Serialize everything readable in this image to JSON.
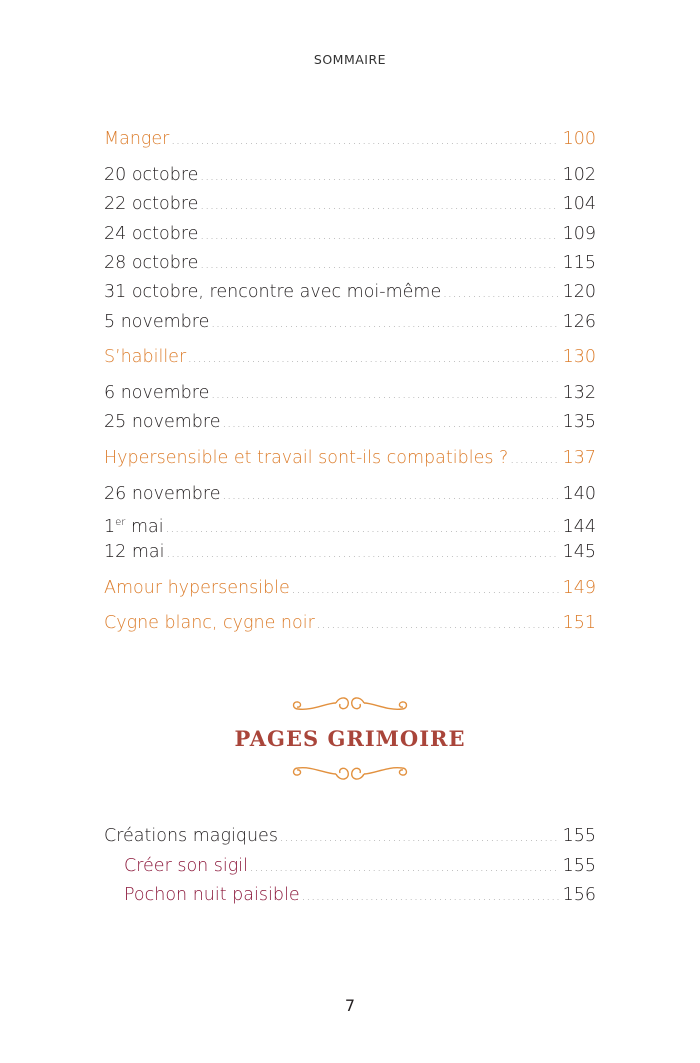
{
  "header": "SOMMAIRE",
  "entries": [
    {
      "label": "Manger",
      "page": "100"
    },
    {
      "label": "20 octobre",
      "page": "102"
    },
    {
      "label": "22 octobre",
      "page": "104"
    },
    {
      "label": "24 octobre",
      "page": "109"
    },
    {
      "label": "28 octobre",
      "page": "115"
    },
    {
      "label": "31 octobre, rencontre avec moi-même",
      "page": "120"
    },
    {
      "label": "5 novembre",
      "page": "126"
    },
    {
      "label": "S’habiller",
      "page": "130"
    },
    {
      "label": "6 novembre",
      "page": "132"
    },
    {
      "label": "25 novembre",
      "page": "135"
    },
    {
      "label": "Hypersensible et travail sont-ils compatibles ?",
      "page": "137"
    },
    {
      "label": "26 novembre",
      "page": "140"
    },
    {
      "label_num": "1",
      "label_sup": "er",
      "label_rest": " mai",
      "page": "144"
    },
    {
      "label": "12 mai",
      "page": "145"
    },
    {
      "label": "Amour hypersensible",
      "page": "149"
    },
    {
      "label": "Cygne blanc, cygne noir",
      "page": "151"
    }
  ],
  "grimoire": {
    "title": "PAGES GRIMOIRE",
    "entries": [
      {
        "label": "Créations magiques",
        "page": "155"
      },
      {
        "label": "Créer son sigil",
        "page": "155"
      },
      {
        "label": "Pochon nuit paisible",
        "page": "156"
      }
    ]
  },
  "page_number": "7",
  "colors": {
    "section": "#dc7d2c",
    "subsection": "#8a1538",
    "ornament": "#e2913f",
    "title": "#a9453a"
  }
}
